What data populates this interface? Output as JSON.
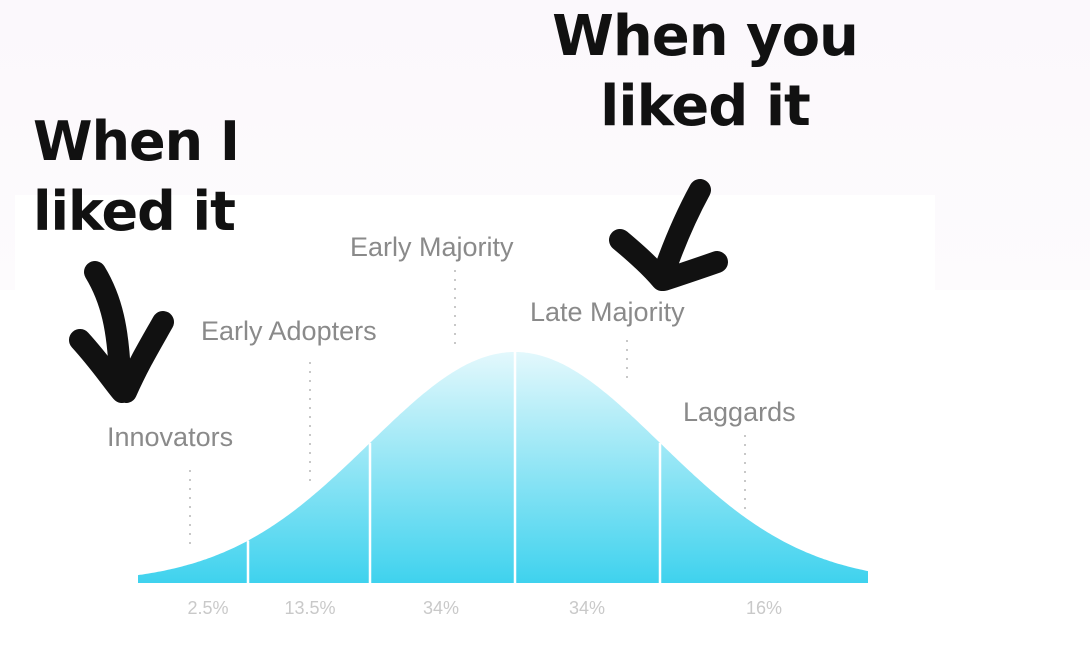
{
  "meme": {
    "left_text": "When I liked it",
    "right_text": "When you liked it"
  },
  "chart_data": {
    "type": "area",
    "title": "",
    "categories": [
      "Innovators",
      "Early Adopters",
      "Early Majority",
      "Late Majority",
      "Laggards"
    ],
    "values": [
      2.5,
      13.5,
      34,
      34,
      16
    ],
    "value_labels": [
      "2.5%",
      "13.5%",
      "34%",
      "34%",
      "16%"
    ],
    "xlabel": "",
    "ylabel": "",
    "grid": false,
    "colors": {
      "fill_top": "#e3f8fc",
      "fill_bottom": "#3fd2ee",
      "divider": "#ffffff",
      "dotted": "#c8c8c8"
    }
  },
  "icons": [
    "arrow-down-icon",
    "arrow-down-icon"
  ]
}
